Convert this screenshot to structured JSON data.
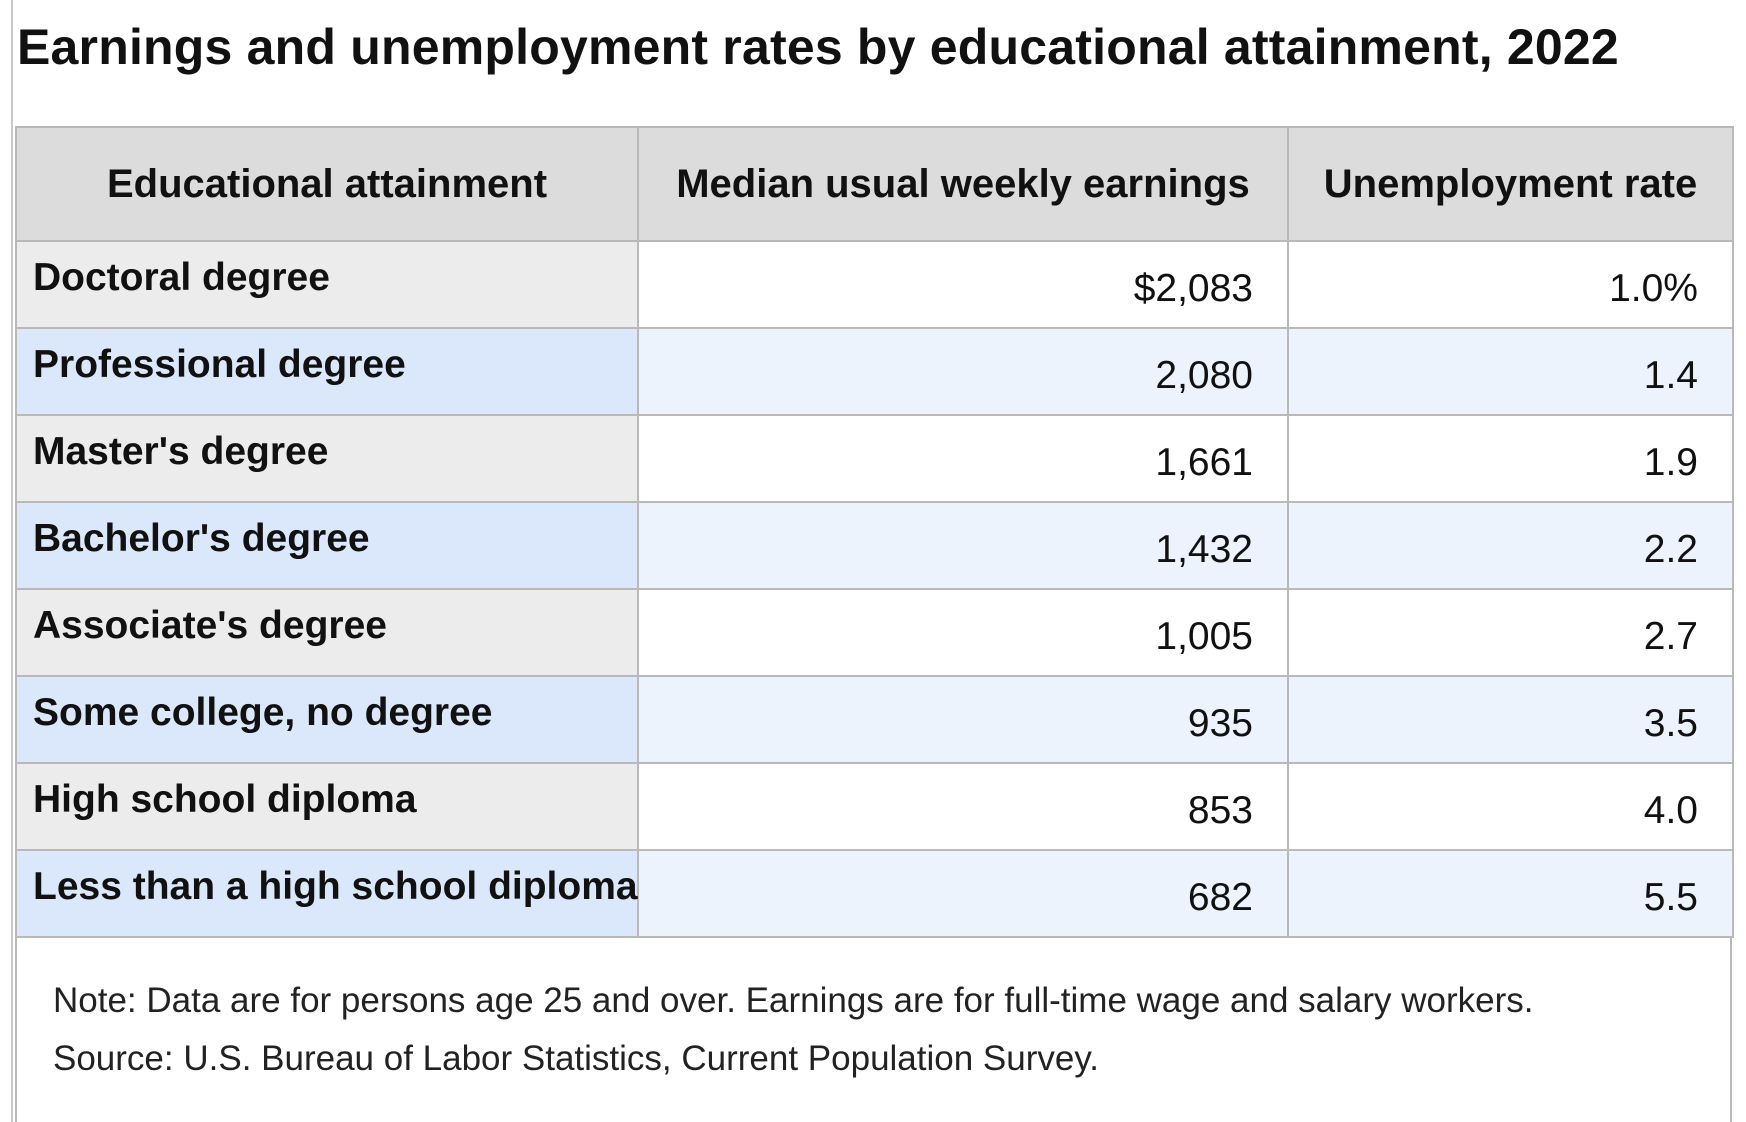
{
  "title": "Earnings and unemployment rates by educational attainment, 2022",
  "table": {
    "headers": [
      "Educational attainment",
      "Median usual weekly earnings",
      "Unemployment rate"
    ],
    "rows": [
      {
        "attainment": "Doctoral degree",
        "earnings": "$2,083",
        "unemployment": "1.0%"
      },
      {
        "attainment": "Professional degree",
        "earnings": "2,080",
        "unemployment": "1.4"
      },
      {
        "attainment": "Master's degree",
        "earnings": "1,661",
        "unemployment": "1.9"
      },
      {
        "attainment": "Bachelor's degree",
        "earnings": "1,432",
        "unemployment": "2.2"
      },
      {
        "attainment": "Associate's degree",
        "earnings": "1,005",
        "unemployment": "2.7"
      },
      {
        "attainment": "Some college, no degree",
        "earnings": "935",
        "unemployment": "3.5"
      },
      {
        "attainment": "High school diploma",
        "earnings": "853",
        "unemployment": "4.0"
      },
      {
        "attainment": "Less than a high school diploma",
        "earnings": "682",
        "unemployment": "5.5"
      }
    ]
  },
  "notes": {
    "note": "Note: Data are for persons age 25 and over. Earnings are for full-time wage and salary workers.",
    "source": "Source: U.S. Bureau of Labor Statistics, Current Population Survey."
  },
  "colors": {
    "header_bg": "#dcdcdc",
    "category_odd_bg": "#ececec",
    "category_even_bg": "#dbe8fb",
    "value_even_bg": "#edf3fd",
    "border": "#b9b9b9"
  }
}
